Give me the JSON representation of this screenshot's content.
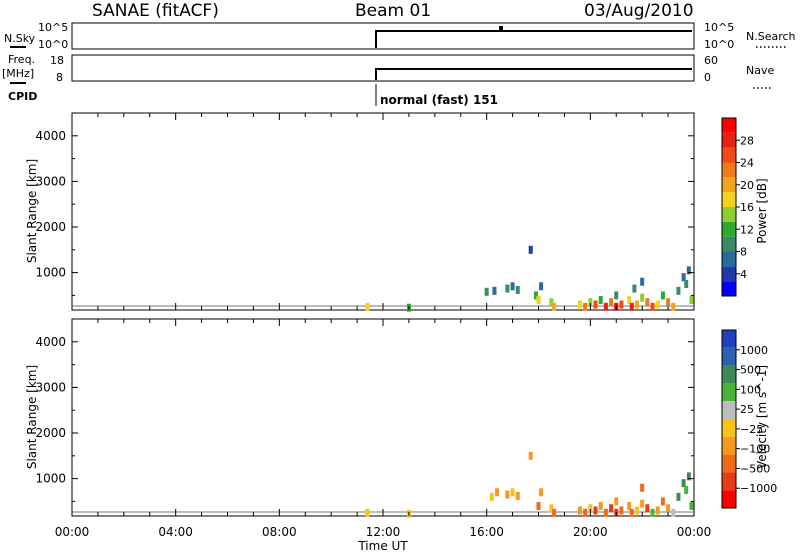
{
  "header": {
    "station": "SANAE (fitACF)",
    "beam": "Beam 01",
    "date": "03/Aug/2010"
  },
  "top_panels": {
    "nsky_label": "N.Sky",
    "nsearch_label": "N.Search",
    "nsky_ticks": [
      "10^5",
      "10^0"
    ],
    "nsearch_ticks": [
      "10^5",
      "10^0"
    ],
    "freq_label": "Freq.",
    "freq_unit": "[MHz]",
    "freq_ticks": [
      "18",
      "8"
    ],
    "nave_label": "Nave",
    "nave_ticks": [
      "60",
      "0"
    ],
    "cpid_label": "CPID",
    "cpid_value": "normal (fast) 151"
  },
  "chart_data": [
    {
      "type": "heatmap",
      "name": "power",
      "ylabel": "Slant Range [km]",
      "xlabel": "Time UT",
      "x_ticks": [
        "00:00",
        "04:00",
        "08:00",
        "12:00",
        "16:00",
        "20:00",
        "00:00"
      ],
      "y_ticks": [
        "1000",
        "2000",
        "3000",
        "4000"
      ],
      "ylim": [
        180,
        4500
      ],
      "xlim": [
        0,
        24
      ],
      "colorbar_label": "Power [dB]",
      "colorbar_ticks": [
        "4",
        "8",
        "12",
        "16",
        "20",
        "24",
        "28"
      ],
      "colorbar_colors": [
        "#0000ff",
        "#1e3ca8",
        "#2a6b9e",
        "#3a8a6a",
        "#2fa82f",
        "#8ccf2f",
        "#f5d21a",
        "#f4a51c",
        "#f07a18",
        "#f04a18",
        "#e81f14",
        "#ff0000"
      ],
      "points": [
        [
          16.8,
          650,
          3
        ],
        [
          17.0,
          700,
          2
        ],
        [
          17.2,
          620,
          3
        ],
        [
          16.0,
          580,
          3
        ],
        [
          16.3,
          600,
          2
        ],
        [
          17.9,
          500,
          4
        ],
        [
          18.0,
          400,
          6
        ],
        [
          18.1,
          700,
          2
        ],
        [
          18.5,
          350,
          5
        ],
        [
          18.6,
          250,
          7
        ],
        [
          19.6,
          300,
          6
        ],
        [
          19.8,
          250,
          8
        ],
        [
          20.0,
          350,
          5
        ],
        [
          20.2,
          300,
          9
        ],
        [
          20.4,
          400,
          4
        ],
        [
          20.6,
          250,
          10
        ],
        [
          20.8,
          350,
          8
        ],
        [
          21.0,
          500,
          3
        ],
        [
          21.0,
          250,
          11
        ],
        [
          21.2,
          300,
          9
        ],
        [
          21.5,
          400,
          6
        ],
        [
          21.6,
          250,
          10
        ],
        [
          21.8,
          300,
          7
        ],
        [
          22.0,
          450,
          5
        ],
        [
          22.2,
          350,
          8
        ],
        [
          22.4,
          250,
          9
        ],
        [
          22.6,
          300,
          6
        ],
        [
          22.8,
          500,
          4
        ],
        [
          23.0,
          350,
          8
        ],
        [
          23.2,
          250,
          7
        ],
        [
          23.4,
          600,
          3
        ],
        [
          23.6,
          900,
          2
        ],
        [
          23.7,
          750,
          3
        ],
        [
          23.8,
          1050,
          2
        ],
        [
          23.9,
          400,
          5
        ],
        [
          22.0,
          800,
          2
        ],
        [
          21.7,
          650,
          3
        ],
        [
          17.7,
          1500,
          1
        ],
        [
          11.4,
          250,
          6
        ],
        [
          13.0,
          230,
          4
        ]
      ]
    },
    {
      "type": "heatmap",
      "name": "velocity",
      "ylabel": "Slant Range [km]",
      "xlabel": "Time UT",
      "x_ticks": [
        "00:00",
        "04:00",
        "08:00",
        "12:00",
        "16:00",
        "20:00",
        "00:00"
      ],
      "y_ticks": [
        "1000",
        "2000",
        "3000",
        "4000"
      ],
      "ylim": [
        180,
        4500
      ],
      "xlim": [
        0,
        24
      ],
      "colorbar_label": "Velocity [m s^-1]",
      "colorbar_ticks": [
        "1000",
        "500",
        "100",
        "25",
        "−25",
        "−100",
        "−500",
        "−1000"
      ],
      "colorbar_colors": [
        "#1f3fbf",
        "#2a62b0",
        "#3c8a56",
        "#4cb43c",
        "#bdbdbd",
        "#f7c21a",
        "#f59a1c",
        "#f06a18",
        "#e83c14",
        "#ff0000"
      ],
      "points": [
        [
          16.4,
          700,
          6
        ],
        [
          16.8,
          650,
          6
        ],
        [
          17.0,
          700,
          5
        ],
        [
          17.2,
          620,
          6
        ],
        [
          16.2,
          600,
          5
        ],
        [
          18.0,
          400,
          7
        ],
        [
          18.1,
          700,
          6
        ],
        [
          18.5,
          350,
          5
        ],
        [
          18.6,
          250,
          7
        ],
        [
          19.6,
          300,
          6
        ],
        [
          19.8,
          250,
          7
        ],
        [
          20.0,
          350,
          5
        ],
        [
          20.2,
          300,
          8
        ],
        [
          20.4,
          400,
          6
        ],
        [
          20.6,
          250,
          7
        ],
        [
          20.8,
          350,
          8
        ],
        [
          21.0,
          500,
          6
        ],
        [
          21.0,
          250,
          8
        ],
        [
          21.2,
          300,
          7
        ],
        [
          21.5,
          400,
          6
        ],
        [
          21.6,
          250,
          7
        ],
        [
          21.8,
          300,
          5
        ],
        [
          22.0,
          450,
          6
        ],
        [
          22.2,
          350,
          8
        ],
        [
          22.4,
          250,
          3
        ],
        [
          22.6,
          300,
          6
        ],
        [
          22.8,
          500,
          7
        ],
        [
          23.0,
          350,
          6
        ],
        [
          23.2,
          250,
          4
        ],
        [
          23.4,
          600,
          2
        ],
        [
          23.6,
          900,
          2
        ],
        [
          23.7,
          750,
          3
        ],
        [
          23.8,
          1050,
          2
        ],
        [
          23.9,
          400,
          3
        ],
        [
          22.0,
          800,
          7
        ],
        [
          17.7,
          1500,
          6
        ],
        [
          11.4,
          250,
          5
        ],
        [
          13.0,
          230,
          5
        ]
      ]
    }
  ]
}
